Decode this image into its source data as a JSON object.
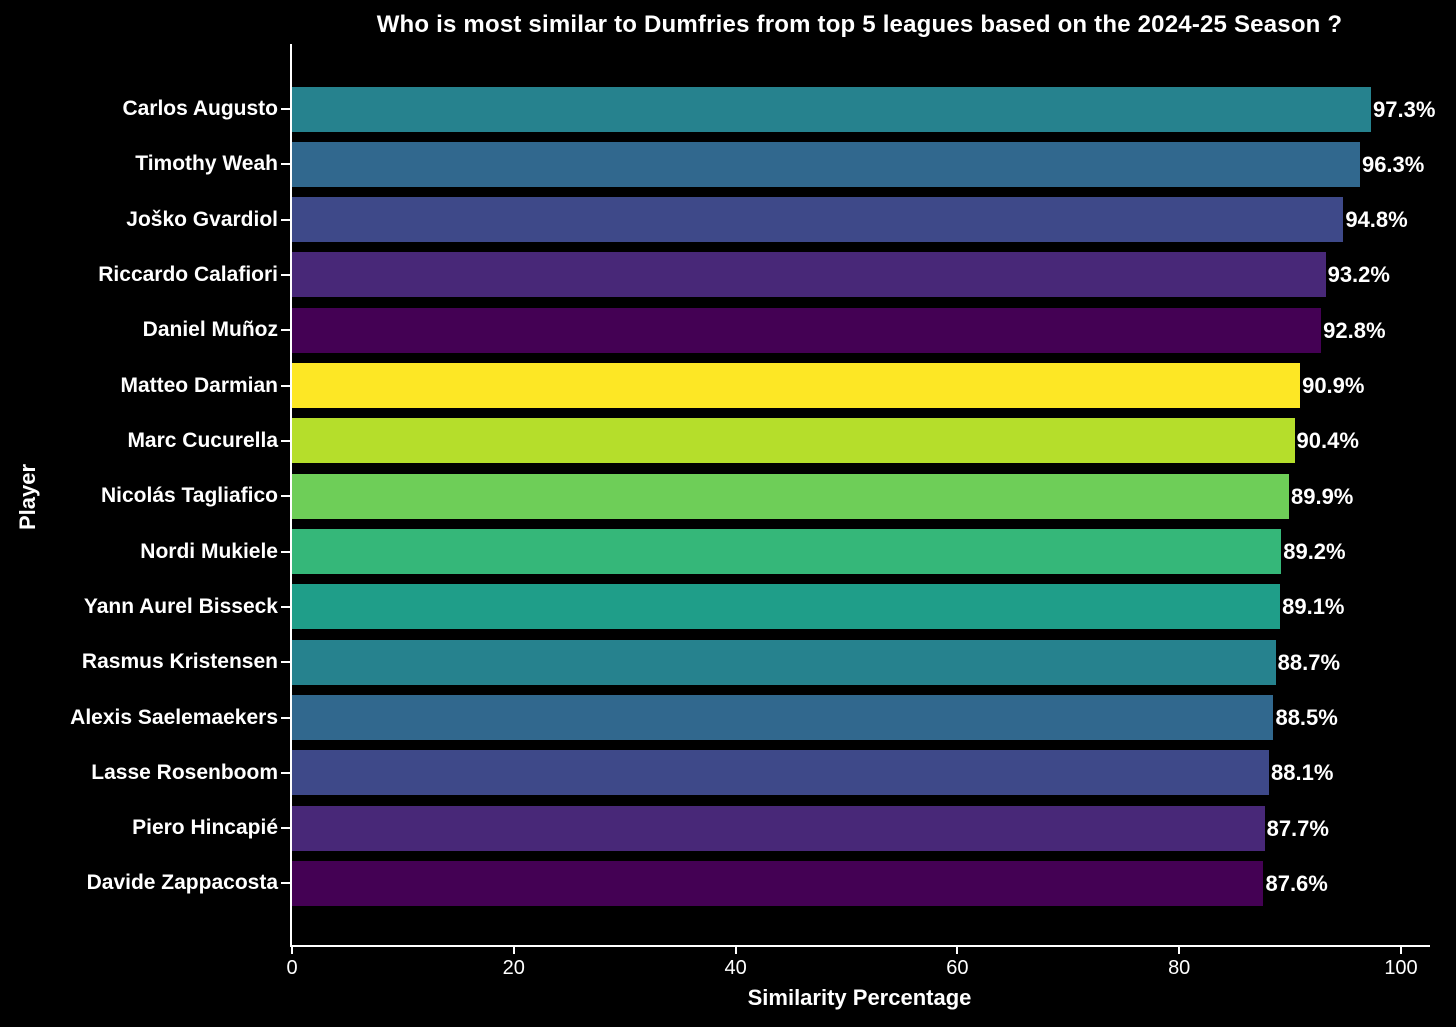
{
  "page": {
    "background": "#000000",
    "text_color": "#ffffff"
  },
  "chart_data": {
    "type": "bar",
    "orientation": "horizontal",
    "title": "Who is most similar to Dumfries from top 5 leagues based on the 2024-25 Season ?",
    "xlabel": "Similarity Percentage",
    "ylabel": "Player",
    "xlim": [
      0,
      102.5
    ],
    "xticks": [
      0,
      20,
      40,
      60,
      80,
      100
    ],
    "grid": false,
    "legend_position": "none",
    "categories": [
      "Carlos Augusto",
      "Timothy Weah",
      "Joško Gvardiol",
      "Riccardo Calafiori",
      "Daniel Muñoz",
      "Matteo Darmian",
      "Marc Cucurella",
      "Nicolás Tagliafico",
      "Nordi Mukiele",
      "Yann Aurel Bisseck",
      "Rasmus Kristensen",
      "Alexis Saelemaekers",
      "Lasse Rosenboom",
      "Piero Hincapié",
      "Davide Zappacosta"
    ],
    "values": [
      97.3,
      96.3,
      94.8,
      93.2,
      92.8,
      90.9,
      90.4,
      89.9,
      89.2,
      89.1,
      88.7,
      88.5,
      88.1,
      87.7,
      87.6
    ],
    "value_labels": [
      "97.3%",
      "96.3%",
      "94.8%",
      "93.2%",
      "92.8%",
      "90.9%",
      "90.4%",
      "89.9%",
      "89.2%",
      "89.1%",
      "88.7%",
      "88.5%",
      "88.1%",
      "87.7%",
      "87.6%"
    ],
    "bar_colors": [
      "#26828e",
      "#31688e",
      "#3e4989",
      "#482878",
      "#440154",
      "#fde725",
      "#b5de2b",
      "#6ece58",
      "#35b779",
      "#1f9e89",
      "#26828e",
      "#31688e",
      "#3e4989",
      "#482878",
      "#440154"
    ]
  }
}
